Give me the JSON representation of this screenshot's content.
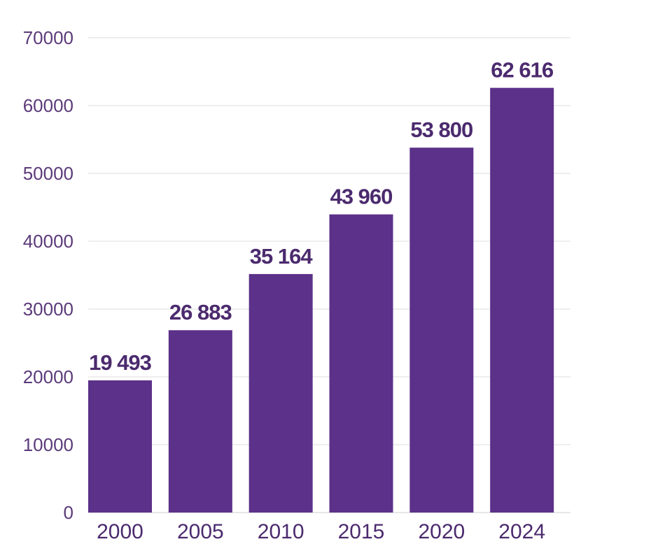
{
  "chart_data": {
    "type": "bar",
    "title": "",
    "xlabel": "",
    "ylabel": "",
    "categories": [
      "2000",
      "2005",
      "2010",
      "2015",
      "2020",
      "2024"
    ],
    "values": [
      19493,
      26883,
      35164,
      43960,
      53800,
      62616
    ],
    "data_labels": [
      "19 493",
      "26 883",
      "35 164",
      "43 960",
      "53 800",
      "62 616"
    ],
    "yticks": [
      "0",
      "10000",
      "20000",
      "30000",
      "40000",
      "50000",
      "60000",
      "70000"
    ],
    "ylim": [
      0,
      70000
    ],
    "grid": true,
    "legend": "none",
    "bar_color": "#5b3189"
  }
}
